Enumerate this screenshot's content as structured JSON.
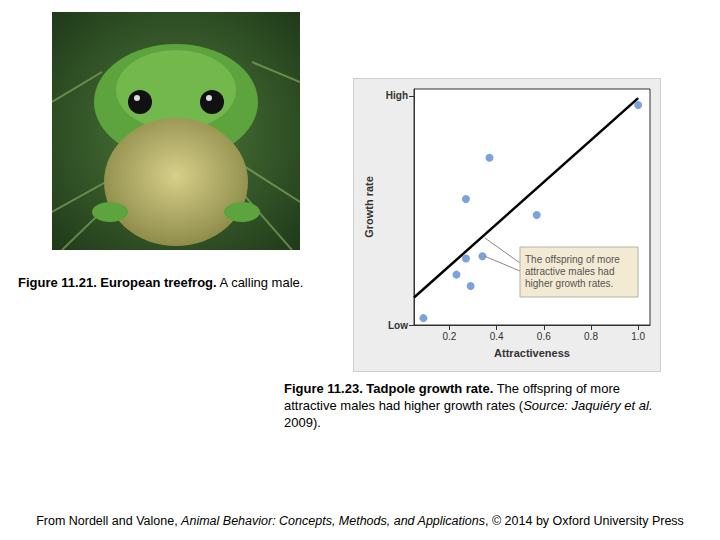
{
  "photo_caption": {
    "parts": [
      {
        "text": "Figure 11.21. European treefrog.",
        "style": "bold"
      },
      {
        "text": " A calling male.",
        "style": "normal"
      }
    ]
  },
  "chart_caption": {
    "parts": [
      {
        "text": "Figure 11.23. Tadpole growth rate.",
        "style": "bold"
      },
      {
        "text": " The offspring of more attractive males had higher growth rates (",
        "style": "normal"
      },
      {
        "text": "Source: Jaquiéry et al.",
        "style": "italic"
      },
      {
        "text": " 2009).",
        "style": "normal"
      }
    ]
  },
  "footer": {
    "parts": [
      {
        "text": "From Nordell and Valone, ",
        "style": "normal"
      },
      {
        "text": "Animal Behavior: Concepts, Methods, and Applications",
        "style": "italic"
      },
      {
        "text": ", © 2014 by Oxford University Press",
        "style": "normal"
      }
    ]
  },
  "chart_data": {
    "type": "scatter",
    "x_label": "Attractiveness",
    "y_label": "Growth rate",
    "x": [
      0.09,
      0.23,
      0.27,
      0.29,
      0.27,
      0.34,
      0.37,
      0.57,
      1.0
    ],
    "values": [
      0.03,
      0.22,
      0.29,
      0.17,
      0.55,
      0.3,
      0.73,
      0.48,
      0.96
    ],
    "color": "#5b8bd1",
    "marker": "circle",
    "fit": {
      "x": [
        0.05,
        1.0
      ],
      "y": [
        0.12,
        0.99
      ],
      "color": "#000000"
    },
    "annotation": "The offspring of more attractive males had higher growth rates.",
    "xlim": [
      0.05,
      1.05
    ],
    "xticks": [
      0.2,
      0.4,
      0.6,
      0.8,
      {
        "value": 1.0,
        "label": "1.0"
      }
    ],
    "ylim": [
      0,
      1.03
    ],
    "yticks": [
      {
        "value": 0,
        "label": "Low"
      },
      {
        "value": 1,
        "label": "High"
      }
    ],
    "grid": false
  }
}
